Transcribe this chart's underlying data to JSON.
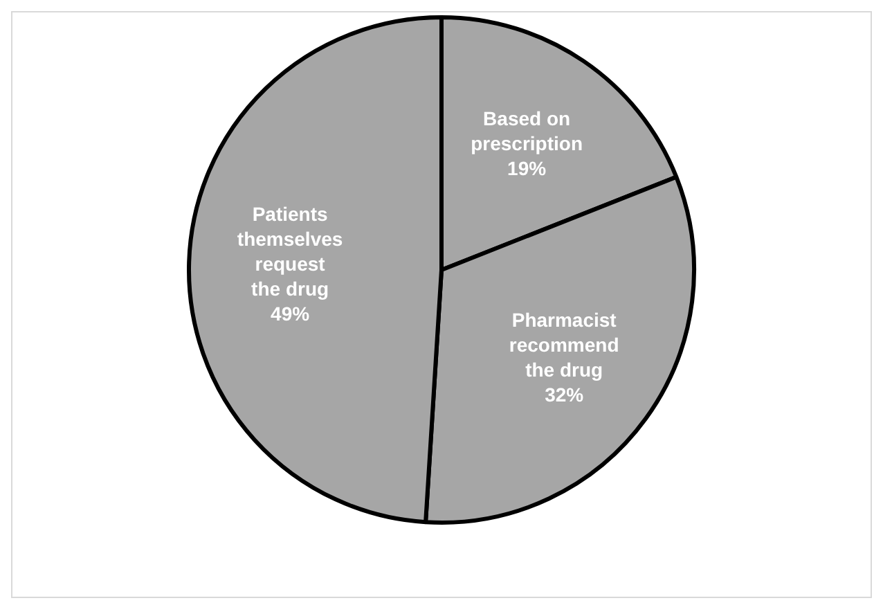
{
  "chart_data": {
    "type": "pie",
    "categories": [
      "Based on prescription",
      "Pharmacist recommend the drug",
      "Patients themselves request the drug"
    ],
    "values": [
      19,
      32,
      49
    ],
    "value_labels": [
      "19%",
      "32%",
      "49%"
    ],
    "colors": [
      "#a6a6a6",
      "#a6a6a6",
      "#a6a6a6"
    ],
    "legend": false
  }
}
